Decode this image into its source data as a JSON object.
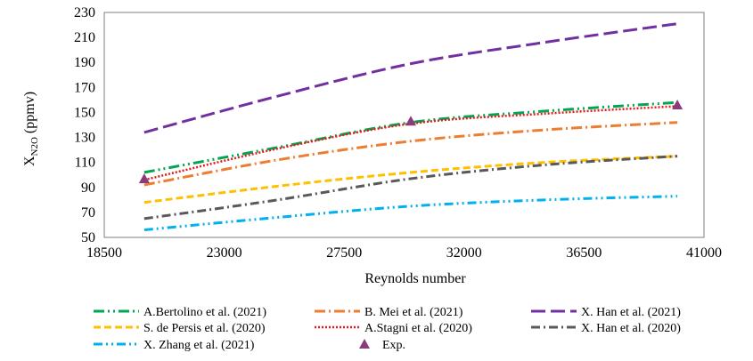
{
  "chart_data": {
    "type": "line",
    "xlabel": "Reynolds number",
    "ylabel": "X",
    "ylabel_sub": "N2O",
    "ylabel_unit": " (ppmv)",
    "xlim": [
      18500,
      41000
    ],
    "ylim": [
      50,
      230
    ],
    "xticks": [
      18500,
      23000,
      27500,
      32000,
      36500,
      41000
    ],
    "yticks": [
      50,
      70,
      90,
      110,
      130,
      150,
      170,
      190,
      210,
      230
    ],
    "grid": false,
    "legend_position": "bottom",
    "series": [
      {
        "name": "A.Bertolino et al. (2021)",
        "color": "#00a651",
        "dash": "12 4 2 4 2 4",
        "x": [
          20000,
          25000,
          30000,
          35000,
          40000
        ],
        "y": [
          102,
          122,
          142,
          151,
          158
        ]
      },
      {
        "name": "B. Mei et al. (2021)",
        "color": "#ed7d31",
        "dash": "12 4 2 4",
        "x": [
          20000,
          25000,
          30000,
          35000,
          40000
        ],
        "y": [
          92,
          112,
          127,
          136,
          142
        ]
      },
      {
        "name": "X. Han et al. (2021)",
        "color": "#7030a0",
        "dash": "16 6",
        "x": [
          20000,
          25000,
          30000,
          35000,
          40000
        ],
        "y": [
          134,
          163,
          189,
          206,
          221
        ]
      },
      {
        "name": "S. de Persis et al. (2020)",
        "color": "#ffc000",
        "dash": "8 4",
        "x": [
          20000,
          25000,
          30000,
          35000,
          40000
        ],
        "y": [
          78,
          91,
          102,
          110,
          115
        ]
      },
      {
        "name": "A.Stagni et al. (2020)",
        "color": "#e41a1c",
        "dash": "2 2",
        "x": [
          20000,
          25000,
          30000,
          35000,
          40000
        ],
        "y": [
          96,
          121,
          141,
          149,
          155
        ]
      },
      {
        "name": "X. Han et al. (2020)",
        "color": "#595959",
        "dash": "10 4 2 4",
        "x": [
          20000,
          25000,
          30000,
          35000,
          40000
        ],
        "y": [
          65,
          80,
          97,
          108,
          115
        ]
      },
      {
        "name": "X. Zhang et al. (2021)",
        "color": "#00b0f0",
        "dash": "10 4 2 4 2 4",
        "x": [
          20000,
          25000,
          30000,
          35000,
          40000
        ],
        "y": [
          56,
          66,
          75,
          80,
          83
        ]
      }
    ],
    "markers": {
      "name": "Exp.",
      "color": "#8b3a7a",
      "shape": "triangle",
      "x": [
        20000,
        30000,
        40000
      ],
      "y": [
        97,
        143,
        156
      ]
    }
  }
}
